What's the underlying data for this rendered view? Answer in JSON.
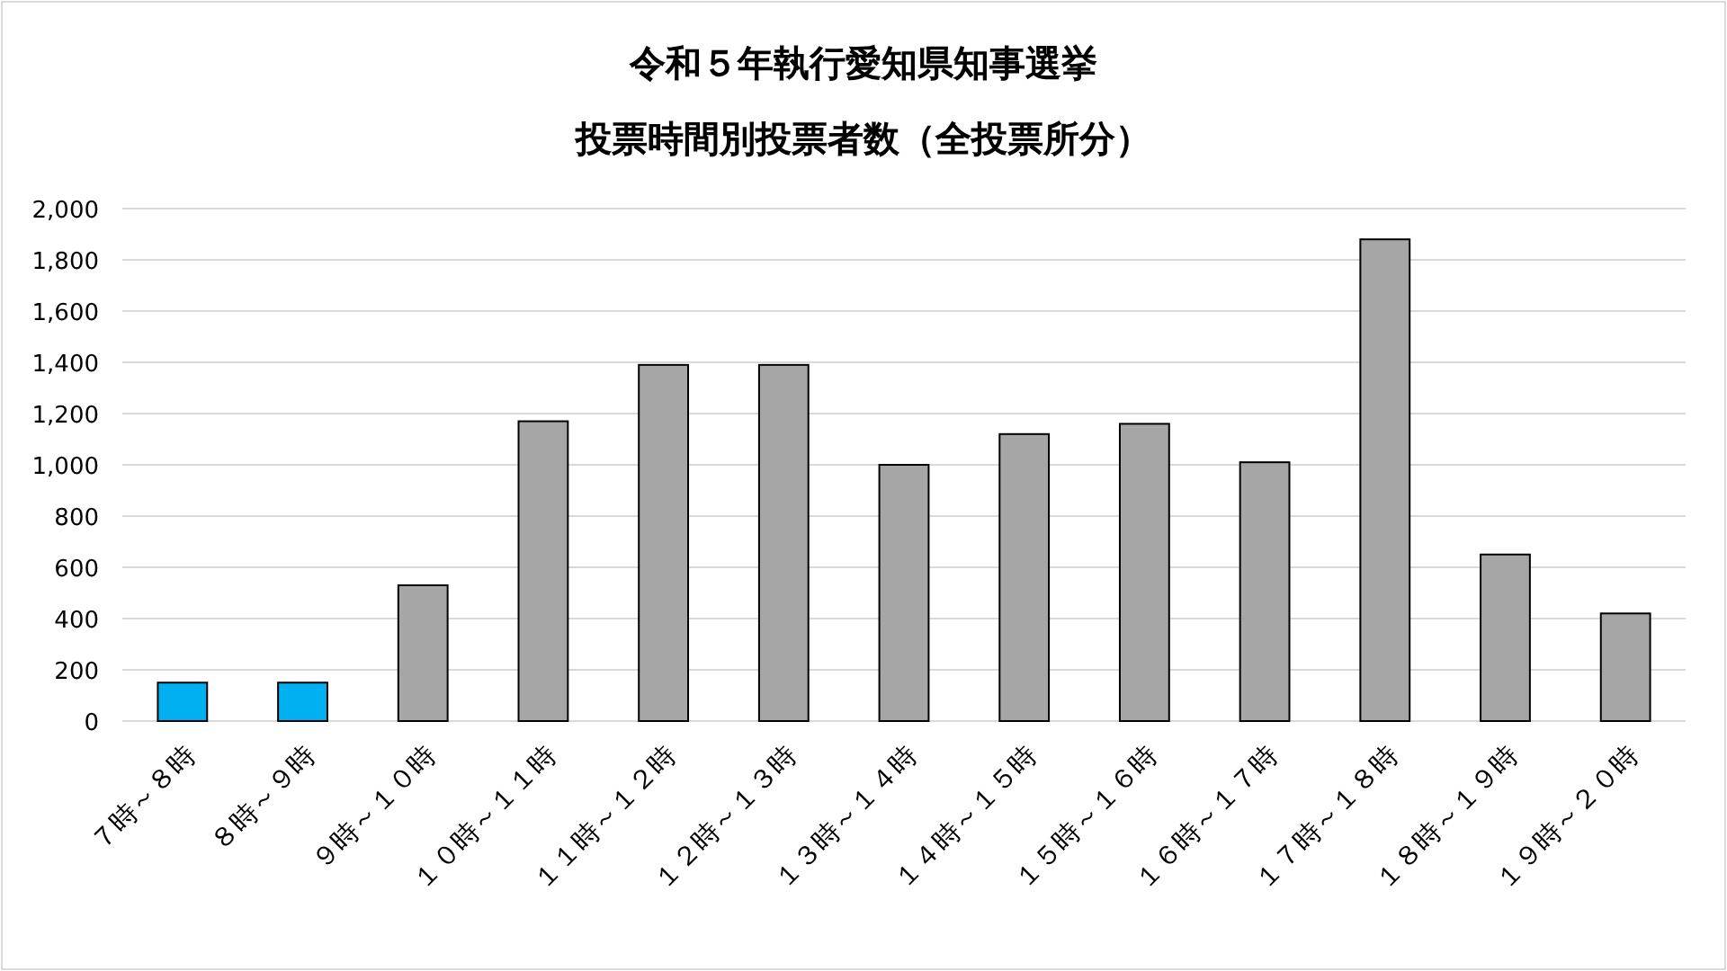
{
  "chart_data": {
    "type": "bar",
    "title": "令和５年執行愛知県知事選挙",
    "subtitle": "投票時間別投票者数（全投票所分）",
    "categories": [
      "７時～８時",
      "８時～９時",
      "９時～１０時",
      "１０時～１１時",
      "１１時～１２時",
      "１２時～１３時",
      "１３時～１４時",
      "１４時～１５時",
      "１５時～１６時",
      "１６時～１７時",
      "１７時～１８時",
      "１８時～１９時",
      "１９時～２０時"
    ],
    "values": [
      150,
      150,
      530,
      1170,
      1390,
      1390,
      1000,
      1120,
      1160,
      1010,
      1880,
      650,
      420
    ],
    "colors": [
      "#00b0f0",
      "#00b0f0",
      "#a6a6a6",
      "#a6a6a6",
      "#a6a6a6",
      "#a6a6a6",
      "#a6a6a6",
      "#a6a6a6",
      "#a6a6a6",
      "#a6a6a6",
      "#a6a6a6",
      "#a6a6a6",
      "#a6a6a6"
    ],
    "ylim": [
      0,
      2000
    ],
    "yticks": [
      {
        "value": 0,
        "label": "0"
      },
      {
        "value": 200,
        "label": "200"
      },
      {
        "value": 400,
        "label": "400"
      },
      {
        "value": 600,
        "label": "600"
      },
      {
        "value": 800,
        "label": "800"
      },
      {
        "value": 1000,
        "label": "1,000"
      },
      {
        "value": 1200,
        "label": "1,200"
      },
      {
        "value": 1400,
        "label": "1,400"
      },
      {
        "value": 1600,
        "label": "1,600"
      },
      {
        "value": 1800,
        "label": "1,800"
      },
      {
        "value": 2000,
        "label": "2,000"
      }
    ],
    "grid": "y"
  }
}
